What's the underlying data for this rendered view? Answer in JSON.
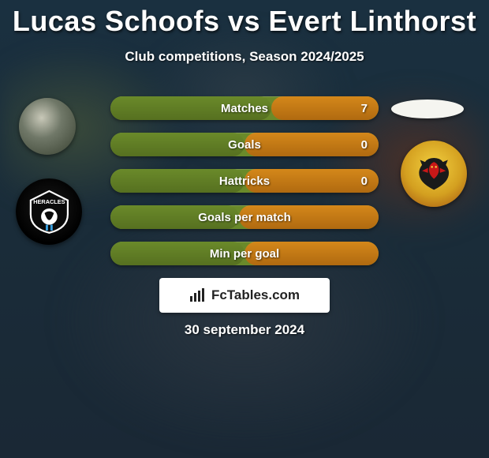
{
  "header": {
    "title": "Lucas Schoofs vs Evert Linthorst",
    "subtitle": "Club competitions, Season 2024/2025"
  },
  "players": {
    "left": {
      "name": "Lucas Schoofs",
      "club": "Heracles"
    },
    "right": {
      "name": "Evert Linthorst",
      "club": "Go Ahead Eagles Deventer"
    }
  },
  "stats": {
    "bar_colors": {
      "left_fill": "#6a8a2a",
      "right_fill": "#d4881a",
      "track": "#6a8a2a"
    },
    "rows": [
      {
        "label": "Matches",
        "left_pct": 60,
        "right_pct": 40,
        "right_value": "7"
      },
      {
        "label": "Goals",
        "left_pct": 50,
        "right_pct": 50,
        "right_value": "0"
      },
      {
        "label": "Hattricks",
        "left_pct": 50,
        "right_pct": 50,
        "right_value": "0"
      },
      {
        "label": "Goals per match",
        "left_pct": 48,
        "right_pct": 52,
        "right_value": ""
      },
      {
        "label": "Min per goal",
        "left_pct": 50,
        "right_pct": 50,
        "right_value": ""
      }
    ]
  },
  "branding": {
    "text": "FcTables.com"
  },
  "footer": {
    "date": "30 september 2024"
  },
  "colors": {
    "text": "#ffffff",
    "title": "#ffffff",
    "branding_bg": "#ffffff",
    "branding_text": "#222222"
  }
}
